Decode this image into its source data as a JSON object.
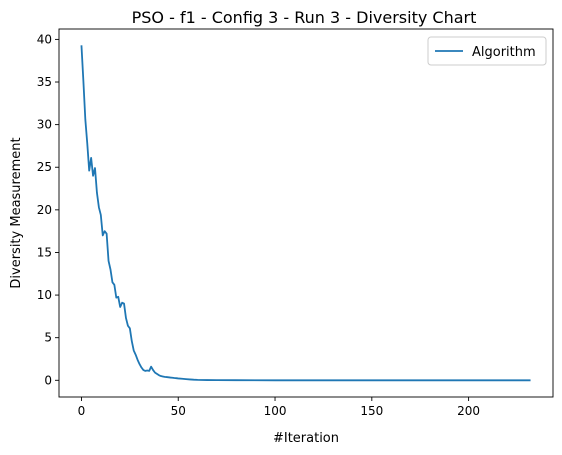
{
  "chart_data": {
    "type": "line",
    "title": "PSO - f1 - Config 3 - Run 3 - Diversity Chart",
    "xlabel": "#Iteration",
    "ylabel": "Diversity Measurement",
    "xlim": [
      -11.6,
      243.6
    ],
    "ylim": [
      -1.96,
      41.22
    ],
    "xticks": [
      0,
      50,
      100,
      150,
      200
    ],
    "yticks": [
      0,
      5,
      10,
      15,
      20,
      25,
      30,
      35,
      40
    ],
    "xtick_labels": [
      "0",
      "50",
      "100",
      "150",
      "200"
    ],
    "ytick_labels": [
      "0",
      "5",
      "10",
      "15",
      "20",
      "25",
      "30",
      "35",
      "40"
    ],
    "legend_position": "top-right",
    "grid": false,
    "series": [
      {
        "name": "Algorithm",
        "color": "#1f77b4",
        "x": [
          0,
          1,
          2,
          3,
          4,
          5,
          6,
          7,
          8,
          9,
          10,
          11,
          12,
          13,
          14,
          15,
          16,
          17,
          18,
          19,
          20,
          21,
          22,
          23,
          24,
          25,
          26,
          27,
          28,
          29,
          30,
          31,
          32,
          33,
          34,
          35,
          36,
          37,
          38,
          39,
          40,
          41,
          42,
          43,
          44,
          45,
          46,
          47,
          48,
          49,
          50,
          52,
          54,
          56,
          58,
          60,
          65,
          70,
          80,
          100,
          150,
          200,
          232
        ],
        "y": [
          39.3,
          35.1,
          30.6,
          27.8,
          24.6,
          26.1,
          24.0,
          24.9,
          22.0,
          20.3,
          19.4,
          17.0,
          17.5,
          17.2,
          14.0,
          13.0,
          11.5,
          11.2,
          9.7,
          9.8,
          8.6,
          9.1,
          9.0,
          7.3,
          6.4,
          6.1,
          4.6,
          3.5,
          3.0,
          2.4,
          1.9,
          1.5,
          1.2,
          1.1,
          1.15,
          1.1,
          1.6,
          1.2,
          0.9,
          0.75,
          0.6,
          0.5,
          0.45,
          0.4,
          0.38,
          0.35,
          0.32,
          0.3,
          0.27,
          0.25,
          0.22,
          0.18,
          0.14,
          0.1,
          0.07,
          0.05,
          0.03,
          0.02,
          0.01,
          0.0,
          0.0,
          0.0,
          0.0
        ]
      }
    ]
  }
}
